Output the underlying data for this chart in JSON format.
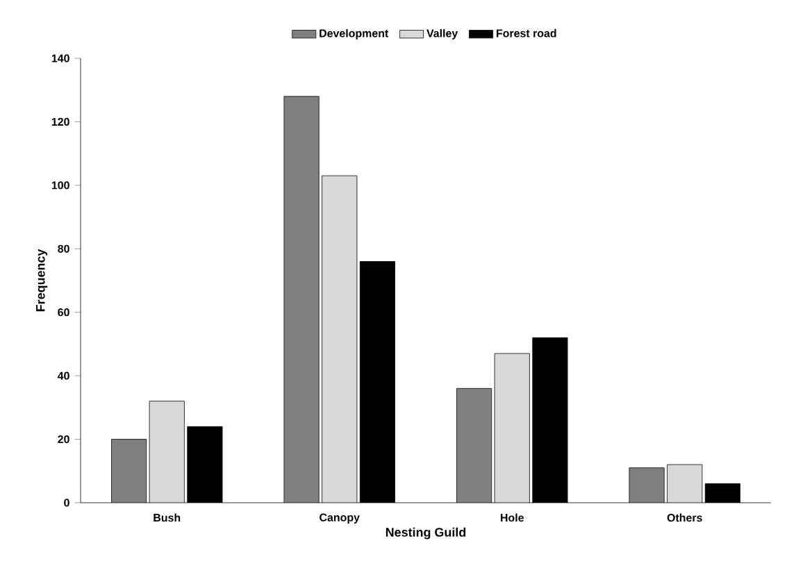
{
  "chart_data": {
    "type": "bar",
    "xlabel": "Nesting Guild",
    "ylabel": "Frequency",
    "categories": [
      "Bush",
      "Canopy",
      "Hole",
      "Others"
    ],
    "series": [
      {
        "name": "Development",
        "color": "#808080",
        "values": [
          20,
          128,
          36,
          11
        ]
      },
      {
        "name": "Valley",
        "color": "#d9d9d9",
        "values": [
          32,
          103,
          47,
          12
        ]
      },
      {
        "name": "Forest road",
        "color": "#000000",
        "values": [
          24,
          76,
          52,
          6
        ]
      }
    ],
    "ylim": [
      0,
      140
    ],
    "yticks": [
      0,
      20,
      40,
      60,
      80,
      100,
      120,
      140
    ],
    "grid": false,
    "legend": "top"
  }
}
